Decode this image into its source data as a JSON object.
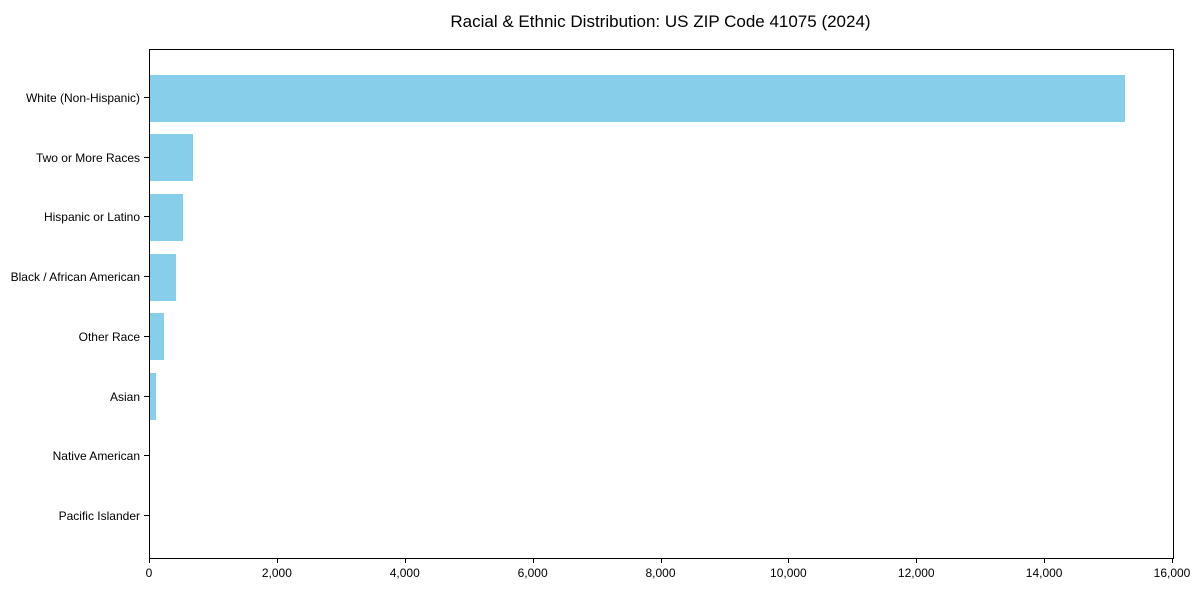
{
  "title": "Racial & Ethnic Distribution: US ZIP Code 41075 (2024)",
  "colors": {
    "bar": "#87CEEB",
    "axis": "#000000",
    "text": "#000000",
    "background": "#FFFFFF"
  },
  "chart_data": {
    "type": "bar",
    "orientation": "horizontal",
    "title": "Racial & Ethnic Distribution: US ZIP Code 41075 (2024)",
    "categories": [
      "White (Non-Hispanic)",
      "Two or More Races",
      "Hispanic or Latino",
      "Black / African American",
      "Other Race",
      "Asian",
      "Native American",
      "Pacific Islander"
    ],
    "values": [
      15250,
      680,
      510,
      400,
      215,
      100,
      0,
      0
    ],
    "xlabel": "",
    "ylabel": "",
    "xlim": [
      0,
      16000
    ],
    "xticks": [
      0,
      2000,
      4000,
      6000,
      8000,
      10000,
      12000,
      14000,
      16000
    ],
    "xtick_labels": [
      "0",
      "2,000",
      "4,000",
      "6,000",
      "8,000",
      "10,000",
      "12,000",
      "14,000",
      "16,000"
    ],
    "grid": false,
    "legend": null,
    "bar_color": "#87CEEB"
  }
}
